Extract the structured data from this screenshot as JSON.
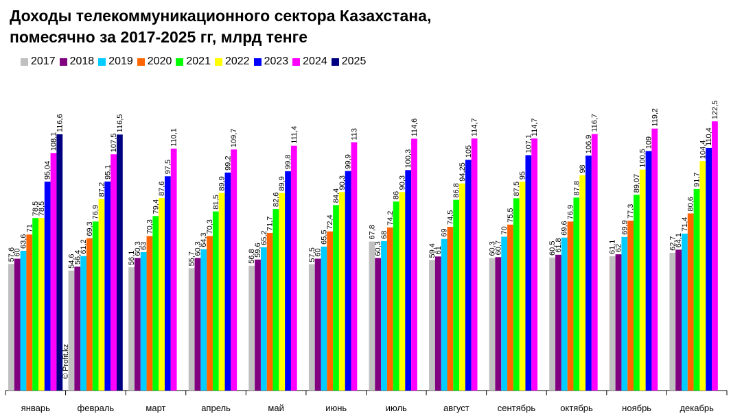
{
  "chart_data": {
    "type": "bar",
    "title_line1": "Доходы телекоммуникационного сектора Казахстана,",
    "title_line2": "помесячно за 2017-2025 гг, млрд тенге",
    "watermark": "© Profit.kz",
    "categories": [
      "январь",
      "февраль",
      "март",
      "апрель",
      "май",
      "июнь",
      "июль",
      "август",
      "сентябрь",
      "октябрь",
      "ноябрь",
      "декабрь"
    ],
    "series": [
      {
        "name": "2017",
        "color": "#c0c0c0",
        "values": [
          57.6,
          54.6,
          56.1,
          55.7,
          56.8,
          57.5,
          67.8,
          59.4,
          60.3,
          60.5,
          61.1,
          62.7
        ],
        "labels": [
          "57,6",
          "54,6",
          "56,1",
          "55,7",
          "56,8",
          "57,5",
          "67,8",
          "59,4",
          "60,3",
          "60,5",
          "61,1",
          "62,7"
        ]
      },
      {
        "name": "2018",
        "color": "#800080",
        "values": [
          60,
          56.4,
          60.3,
          60.3,
          59.6,
          60,
          60.3,
          61,
          60.7,
          61.8,
          62,
          64.1
        ],
        "labels": [
          "60",
          "56,4",
          "60,3",
          "60,3",
          "59,6",
          "60",
          "60,3",
          "61",
          "60,7",
          "61,8",
          "62",
          "64,1"
        ]
      },
      {
        "name": "2019",
        "color": "#00ccff",
        "values": [
          63.6,
          61.2,
          63,
          64.3,
          65.2,
          65.5,
          68,
          69,
          70,
          69.6,
          69.9,
          71.4
        ],
        "labels": [
          "63,6",
          "61,2",
          "63",
          "64,3",
          "65,2",
          "65,5",
          "68",
          "69",
          "70",
          "69,6",
          "69,9",
          "71,4"
        ]
      },
      {
        "name": "2020",
        "color": "#ff6600",
        "values": [
          71,
          69.3,
          70.3,
          70.3,
          71.7,
          72.4,
          74.2,
          74.5,
          75.5,
          76.9,
          77.3,
          80.6
        ],
        "labels": [
          "71",
          "69,3",
          "70,3",
          "70,3",
          "71,7",
          "72,4",
          "74,2",
          "74,5",
          "75,5",
          "76,9",
          "77,3",
          "80,6"
        ]
      },
      {
        "name": "2021",
        "color": "#00ff00",
        "values": [
          78.5,
          76.9,
          79.4,
          81.5,
          82.6,
          84.4,
          86,
          86.8,
          87.5,
          87.8,
          89.07,
          91.7
        ],
        "labels": [
          "78,5",
          "76,9",
          "79,4",
          "81,5",
          "82,6",
          "84,4",
          "86",
          "86,8",
          "87,5",
          "87,8",
          "89,07",
          "91,7"
        ]
      },
      {
        "name": "2022",
        "color": "#ffff00",
        "values": [
          78.5,
          87.2,
          87.6,
          89.9,
          89.9,
          90.3,
          90.3,
          94.25,
          95,
          98,
          100.5,
          104.4
        ],
        "labels": [
          "78,5",
          "87,2",
          "87,6",
          "89,9",
          "89,9",
          "90,3",
          "90,3",
          "94,25",
          "95",
          "98",
          "100,5",
          "104,4"
        ]
      },
      {
        "name": "2023",
        "color": "#0000ff",
        "values": [
          95.04,
          95.1,
          97.5,
          99.2,
          99.8,
          99.9,
          100.3,
          105,
          107.1,
          106.9,
          109,
          110.4
        ],
        "labels": [
          "95,04",
          "95,1",
          "97,5",
          "99,2",
          "99,8",
          "99,9",
          "100,3",
          "105",
          "107,1",
          "106,9",
          "109",
          "110,4"
        ]
      },
      {
        "name": "2024",
        "color": "#ff00ff",
        "values": [
          108.1,
          107.5,
          110.1,
          109.7,
          111.4,
          113,
          114.6,
          114.7,
          114.7,
          116.7,
          119.2,
          122.5
        ],
        "labels": [
          "108,1",
          "107,5",
          "110,1",
          "109,7",
          "111,4",
          "113",
          "114,6",
          "114,7",
          "114,7",
          "116,7",
          "119,2",
          "122,5"
        ]
      },
      {
        "name": "2025",
        "color": "#000080",
        "values": [
          116.6,
          116.5,
          null,
          null,
          null,
          null,
          null,
          null,
          null,
          null,
          null,
          null
        ],
        "labels": [
          "116,6",
          "116,5",
          null,
          null,
          null,
          null,
          null,
          null,
          null,
          null,
          null,
          null
        ]
      }
    ],
    "ylim": [
      0,
      135
    ],
    "legend_position": "top-left",
    "grid": false
  }
}
